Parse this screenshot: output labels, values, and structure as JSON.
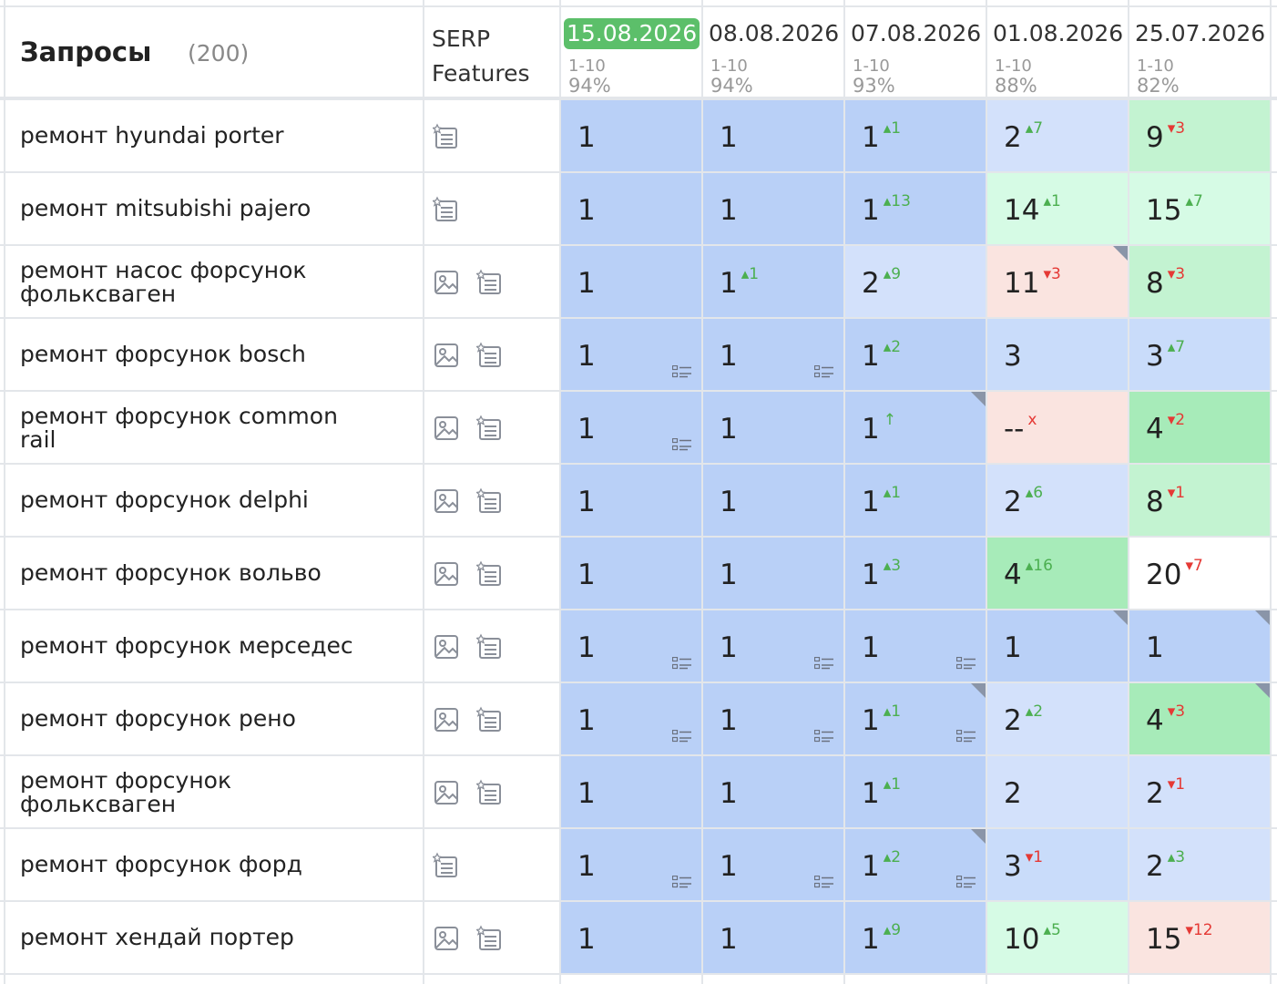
{
  "header": {
    "queries_label": "Запросы",
    "queries_count": "(200)",
    "serp_label_line1": "SERP",
    "serp_label_line2": "Features"
  },
  "dates": [
    {
      "date": "15.08.2026",
      "range": "1-10",
      "pct": "94%",
      "current": true
    },
    {
      "date": "08.08.2026",
      "range": "1-10",
      "pct": "94%"
    },
    {
      "date": "07.08.2026",
      "range": "1-10",
      "pct": "93%"
    },
    {
      "date": "01.08.2026",
      "range": "1-10",
      "pct": "88%"
    },
    {
      "date": "25.07.2026",
      "range": "1-10",
      "pct": "82%"
    }
  ],
  "colors": {
    "current_date_badge": "#5cbf6a",
    "top1": "#b9d0f7",
    "top3": "#c9dcfa",
    "top10_blue": "#d3e1fb",
    "top_green_light": "#d6fbe5",
    "top_green": "#c3f3d1",
    "top_green_strong": "#a7ebb9",
    "dropped": "#fae4e0",
    "change_up": "#4caf50",
    "change_down": "#e53935"
  },
  "rows": [
    {
      "query": [
        "ремонт hyundai porter"
      ],
      "features": [
        "snippet-icon"
      ],
      "cells": [
        {
          "pos": "1",
          "bg": "c-a"
        },
        {
          "pos": "1",
          "bg": "c-a"
        },
        {
          "pos": "1",
          "chg": "▴1",
          "dir": "up",
          "bg": "c-a"
        },
        {
          "pos": "2",
          "chg": "▴7",
          "dir": "up",
          "bg": "c-c"
        },
        {
          "pos": "9",
          "chg": "▾3",
          "dir": "dn",
          "bg": "c-g2"
        }
      ]
    },
    {
      "query": [
        "ремонт mitsubishi pajero"
      ],
      "features": [
        "snippet-icon"
      ],
      "cells": [
        {
          "pos": "1",
          "bg": "c-a"
        },
        {
          "pos": "1",
          "bg": "c-a"
        },
        {
          "pos": "1",
          "chg": "▴13",
          "dir": "up",
          "bg": "c-a"
        },
        {
          "pos": "14",
          "chg": "▴1",
          "dir": "up",
          "bg": "c-g1"
        },
        {
          "pos": "15",
          "chg": "▴7",
          "dir": "up",
          "bg": "c-g1"
        }
      ]
    },
    {
      "query": [
        "ремонт насос форсунок",
        "фольксваген"
      ],
      "features": [
        "image-icon",
        "snippet-icon"
      ],
      "cells": [
        {
          "pos": "1",
          "bg": "c-a"
        },
        {
          "pos": "1",
          "chg": "▴1",
          "dir": "up",
          "bg": "c-a"
        },
        {
          "pos": "2",
          "chg": "▴9",
          "dir": "up",
          "bg": "c-c"
        },
        {
          "pos": "11",
          "chg": "▾3",
          "dir": "dn",
          "bg": "c-r",
          "fold": true
        },
        {
          "pos": "8",
          "chg": "▾3",
          "dir": "dn",
          "bg": "c-g2"
        }
      ]
    },
    {
      "query": [
        "ремонт форсунок bosch"
      ],
      "features": [
        "image-icon",
        "snippet-icon"
      ],
      "cells": [
        {
          "pos": "1",
          "bg": "c-a",
          "snip": true
        },
        {
          "pos": "1",
          "bg": "c-a",
          "snip": true
        },
        {
          "pos": "1",
          "chg": "▴2",
          "dir": "up",
          "bg": "c-a"
        },
        {
          "pos": "3",
          "bg": "c-b"
        },
        {
          "pos": "3",
          "chg": "▴7",
          "dir": "up",
          "bg": "c-b"
        }
      ]
    },
    {
      "query": [
        "ремонт форсунок common",
        "rail"
      ],
      "features": [
        "image-icon",
        "snippet-icon"
      ],
      "cells": [
        {
          "pos": "1",
          "bg": "c-a",
          "snip": true
        },
        {
          "pos": "1",
          "bg": "c-a"
        },
        {
          "pos": "1",
          "chg": "↑",
          "dir": "up",
          "bg": "c-a",
          "fold": true
        },
        {
          "pos": "--",
          "chg": "x",
          "dir": "dn",
          "bg": "c-r"
        },
        {
          "pos": "4",
          "chg": "▾2",
          "dir": "dn",
          "bg": "c-g3"
        }
      ]
    },
    {
      "query": [
        "ремонт форсунок delphi"
      ],
      "features": [
        "image-icon",
        "snippet-icon"
      ],
      "cells": [
        {
          "pos": "1",
          "bg": "c-a"
        },
        {
          "pos": "1",
          "bg": "c-a"
        },
        {
          "pos": "1",
          "chg": "▴1",
          "dir": "up",
          "bg": "c-a"
        },
        {
          "pos": "2",
          "chg": "▴6",
          "dir": "up",
          "bg": "c-c"
        },
        {
          "pos": "8",
          "chg": "▾1",
          "dir": "dn",
          "bg": "c-g2"
        }
      ]
    },
    {
      "query": [
        "ремонт форсунок вольво"
      ],
      "features": [
        "image-icon",
        "snippet-icon"
      ],
      "cells": [
        {
          "pos": "1",
          "bg": "c-a"
        },
        {
          "pos": "1",
          "bg": "c-a"
        },
        {
          "pos": "1",
          "chg": "▴3",
          "dir": "up",
          "bg": "c-a"
        },
        {
          "pos": "4",
          "chg": "▴16",
          "dir": "up",
          "bg": "c-g3"
        },
        {
          "pos": "20",
          "chg": "▾7",
          "dir": "dn",
          "bg": "c-w"
        }
      ]
    },
    {
      "query": [
        "ремонт форсунок мерседес"
      ],
      "features": [
        "image-icon",
        "snippet-icon"
      ],
      "cells": [
        {
          "pos": "1",
          "bg": "c-a",
          "snip": true
        },
        {
          "pos": "1",
          "bg": "c-a",
          "snip": true
        },
        {
          "pos": "1",
          "bg": "c-a",
          "snip": true
        },
        {
          "pos": "1",
          "bg": "c-a",
          "fold": true
        },
        {
          "pos": "1",
          "bg": "c-a",
          "fold": true
        }
      ]
    },
    {
      "query": [
        "ремонт форсунок рено"
      ],
      "features": [
        "image-icon",
        "snippet-icon"
      ],
      "cells": [
        {
          "pos": "1",
          "bg": "c-a",
          "snip": true
        },
        {
          "pos": "1",
          "bg": "c-a",
          "snip": true
        },
        {
          "pos": "1",
          "chg": "▴1",
          "dir": "up",
          "bg": "c-a",
          "snip": true,
          "fold": true
        },
        {
          "pos": "2",
          "chg": "▴2",
          "dir": "up",
          "bg": "c-c"
        },
        {
          "pos": "4",
          "chg": "▾3",
          "dir": "dn",
          "bg": "c-g3",
          "fold": true
        }
      ]
    },
    {
      "query": [
        "ремонт форсунок",
        "фольксваген"
      ],
      "features": [
        "image-icon",
        "snippet-icon"
      ],
      "cells": [
        {
          "pos": "1",
          "bg": "c-a"
        },
        {
          "pos": "1",
          "bg": "c-a"
        },
        {
          "pos": "1",
          "chg": "▴1",
          "dir": "up",
          "bg": "c-a"
        },
        {
          "pos": "2",
          "bg": "c-c"
        },
        {
          "pos": "2",
          "chg": "▾1",
          "dir": "dn",
          "bg": "c-c"
        }
      ]
    },
    {
      "query": [
        "ремонт форсунок форд"
      ],
      "features": [
        "snippet-icon"
      ],
      "cells": [
        {
          "pos": "1",
          "bg": "c-a",
          "snip": true
        },
        {
          "pos": "1",
          "bg": "c-a",
          "snip": true
        },
        {
          "pos": "1",
          "chg": "▴2",
          "dir": "up",
          "bg": "c-a",
          "snip": true,
          "fold": true
        },
        {
          "pos": "3",
          "chg": "▾1",
          "dir": "dn",
          "bg": "c-b"
        },
        {
          "pos": "2",
          "chg": "▴3",
          "dir": "up",
          "bg": "c-c"
        }
      ]
    },
    {
      "query": [
        "ремонт хендай портер"
      ],
      "features": [
        "image-icon",
        "snippet-icon"
      ],
      "cells": [
        {
          "pos": "1",
          "bg": "c-a"
        },
        {
          "pos": "1",
          "bg": "c-a"
        },
        {
          "pos": "1",
          "chg": "▴9",
          "dir": "up",
          "bg": "c-a"
        },
        {
          "pos": "10",
          "chg": "▴5",
          "dir": "up",
          "bg": "c-g1"
        },
        {
          "pos": "15",
          "chg": "▾12",
          "dir": "dn",
          "bg": "c-r"
        }
      ]
    }
  ]
}
